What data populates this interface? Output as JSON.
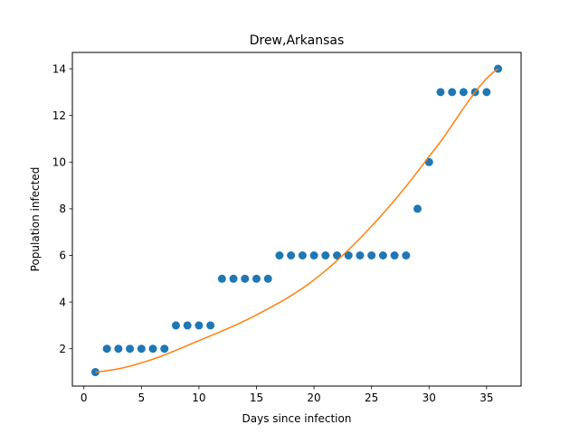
{
  "chart_data": {
    "type": "scatter",
    "title": "Drew,Arkansas",
    "xlabel": "Days since infection",
    "ylabel": "Population infected",
    "xlim": [
      -1,
      38
    ],
    "ylim": [
      0.4,
      14.7
    ],
    "xticks": [
      0,
      5,
      10,
      15,
      20,
      25,
      30,
      35
    ],
    "yticks": [
      2,
      4,
      6,
      8,
      10,
      12,
      14
    ],
    "grid": false,
    "series": [
      {
        "kind": "scatter",
        "color": "#1f77b4",
        "x": [
          1,
          2,
          3,
          4,
          5,
          6,
          7,
          8,
          9,
          10,
          11,
          12,
          13,
          14,
          15,
          16,
          17,
          18,
          19,
          20,
          21,
          22,
          23,
          24,
          25,
          26,
          27,
          28,
          29,
          30,
          31,
          32,
          33,
          34,
          35,
          36
        ],
        "y": [
          1,
          2,
          2,
          2,
          2,
          2,
          2,
          3,
          3,
          3,
          3,
          5,
          5,
          5,
          5,
          5,
          6,
          6,
          6,
          6,
          6,
          6,
          6,
          6,
          6,
          6,
          6,
          6,
          8,
          10,
          13,
          13,
          13,
          13,
          13,
          14
        ]
      },
      {
        "kind": "line",
        "color": "#ff7f0e",
        "x": [
          1,
          5,
          10,
          15,
          20,
          25,
          30,
          36
        ],
        "y": [
          1.0,
          1.4,
          2.35,
          3.45,
          4.95,
          7.25,
          10.25,
          14.0
        ]
      }
    ]
  }
}
